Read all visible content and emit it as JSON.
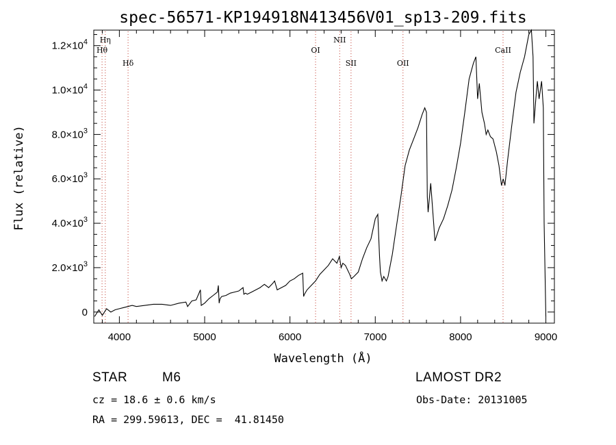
{
  "chart_data": {
    "type": "line",
    "title": "spec-56571-KP194918N413456V01_sp13-209.fits",
    "xlabel": "Wavelength (Å)",
    "ylabel": "Flux (relative)",
    "xlim": [
      3700,
      9100
    ],
    "ylim": [
      -500,
      12700
    ],
    "x_ticks": [
      4000,
      5000,
      6000,
      7000,
      8000,
      9000
    ],
    "x_tick_labels": [
      "4000",
      "5000",
      "6000",
      "7000",
      "8000",
      "9000"
    ],
    "y_ticks": [
      0,
      2000,
      4000,
      6000,
      8000,
      10000,
      12000
    ],
    "y_tick_labels": [
      {
        "mantissa": "0",
        "exp": ""
      },
      {
        "mantissa": "2.0×10",
        "exp": "3"
      },
      {
        "mantissa": "4.0×10",
        "exp": "3"
      },
      {
        "mantissa": "6.0×10",
        "exp": "3"
      },
      {
        "mantissa": "8.0×10",
        "exp": "3"
      },
      {
        "mantissa": "1.0×10",
        "exp": "4"
      },
      {
        "mantissa": "1.2×10",
        "exp": "4"
      }
    ],
    "spectral_lines": [
      {
        "label": "Hη",
        "x": 3835,
        "row": 0
      },
      {
        "label": "Hθ",
        "x": 3797,
        "row": 1
      },
      {
        "label": "Hδ",
        "x": 4102,
        "row": 2
      },
      {
        "label": "OI",
        "x": 6300,
        "row": 1
      },
      {
        "label": "NII",
        "x": 6583,
        "row": 0
      },
      {
        "label": "SII",
        "x": 6716,
        "row": 2
      },
      {
        "label": "OII",
        "x": 7325,
        "row": 2
      },
      {
        "label": "CaII",
        "x": 8498,
        "row": 1
      }
    ],
    "x": [
      3710,
      3760,
      3800,
      3850,
      3900,
      3950,
      4000,
      4050,
      4100,
      4150,
      4200,
      4300,
      4400,
      4500,
      4600,
      4700,
      4780,
      4800,
      4850,
      4900,
      4950,
      4960,
      5000,
      5050,
      5100,
      5150,
      5160,
      5170,
      5180,
      5200,
      5250,
      5300,
      5350,
      5400,
      5450,
      5460,
      5480,
      5500,
      5550,
      5600,
      5650,
      5700,
      5750,
      5800,
      5820,
      5850,
      5900,
      5950,
      6000,
      6050,
      6100,
      6150,
      6160,
      6170,
      6200,
      6250,
      6300,
      6350,
      6400,
      6450,
      6500,
      6550,
      6580,
      6600,
      6620,
      6650,
      6700,
      6720,
      6750,
      6800,
      6850,
      6900,
      6950,
      7000,
      7030,
      7050,
      7060,
      7080,
      7100,
      7130,
      7150,
      7200,
      7250,
      7300,
      7350,
      7400,
      7450,
      7500,
      7550,
      7580,
      7600,
      7610,
      7620,
      7650,
      7700,
      7750,
      7800,
      7850,
      7900,
      7950,
      8000,
      8050,
      8100,
      8150,
      8180,
      8200,
      8220,
      8250,
      8280,
      8300,
      8320,
      8350,
      8380,
      8400,
      8420,
      8450,
      8480,
      8500,
      8520,
      8550,
      8600,
      8650,
      8700,
      8750,
      8800,
      8830,
      8850,
      8860,
      8880,
      8900,
      8920,
      8950,
      8970,
      8980,
      9000
    ],
    "y": [
      -200,
      100,
      -150,
      150,
      0,
      100,
      150,
      200,
      250,
      300,
      250,
      300,
      350,
      350,
      300,
      400,
      450,
      250,
      500,
      550,
      1000,
      300,
      400,
      600,
      750,
      900,
      1200,
      400,
      600,
      700,
      750,
      850,
      900,
      950,
      1100,
      800,
      850,
      800,
      900,
      1000,
      1100,
      1250,
      1100,
      1300,
      1400,
      1000,
      1100,
      1200,
      1400,
      1500,
      1650,
      1750,
      700,
      800,
      1000,
      1200,
      1400,
      1700,
      1900,
      2100,
      2400,
      2200,
      2500,
      2000,
      2200,
      2100,
      1700,
      1500,
      1600,
      1800,
      2400,
      2900,
      3300,
      4200,
      4400,
      2500,
      1800,
      1400,
      1600,
      1400,
      1600,
      2600,
      3900,
      5200,
      6600,
      7300,
      7800,
      8300,
      8900,
      9200,
      9000,
      5200,
      4500,
      5800,
      3200,
      3800,
      4200,
      4800,
      5500,
      6500,
      7600,
      9000,
      10500,
      11200,
      11500,
      9600,
      10300,
      9000,
      8500,
      8000,
      8200,
      7900,
      7800,
      7500,
      7200,
      6600,
      5700,
      6000,
      5700,
      6800,
      8400,
      9900,
      10800,
      11500,
      12500,
      12900,
      11500,
      8500,
      9500,
      10400,
      9600,
      10400,
      9200,
      4000,
      -200
    ]
  },
  "info": {
    "object_class": "STAR",
    "subclass": "M6",
    "survey": "LAMOST DR2",
    "cz": "cz = 18.6 ± 0.6 km/s",
    "obs_date": "Obs-Date: 20131005",
    "coords": "RA = 299.59613, DEC =  41.81450"
  }
}
